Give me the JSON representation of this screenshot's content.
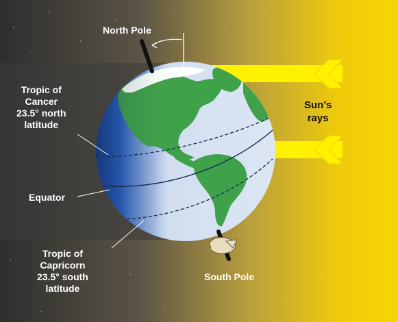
{
  "diagram": {
    "labels": {
      "north_pole": "North Pole",
      "south_pole": "South Pole",
      "sun_rays": [
        "Sun’s",
        "rays"
      ],
      "equator": "Equator",
      "tropic_cancer": [
        "Tropic of",
        "Cancer",
        "23.5° north",
        "latitude"
      ],
      "tropic_capricorn": [
        "Tropic of",
        "Capricorn",
        "23.5° south",
        "latitude"
      ]
    },
    "axial_tilt_degrees": 23.5,
    "colors": {
      "space_dark": "#3f3f3f",
      "sunlight": "#f3d400",
      "ray_arrow": "#fff200",
      "ocean_lit": "#d9e4f2",
      "ocean_dark": "#1f4fa6",
      "land": "#3fa14a",
      "latitude_line": "#1a2a55"
    }
  }
}
